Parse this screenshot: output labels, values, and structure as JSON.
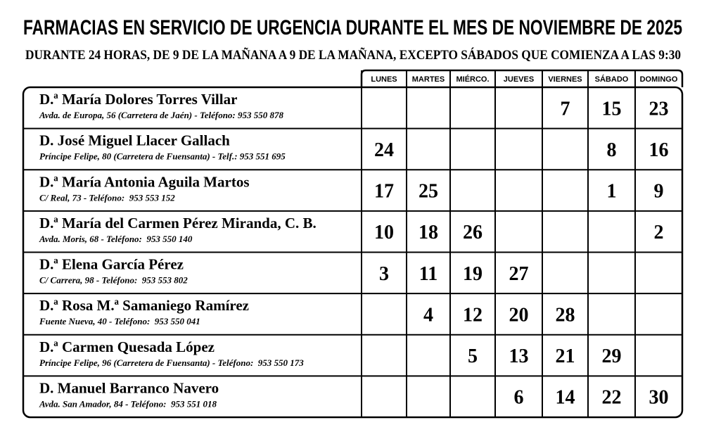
{
  "header": {
    "title": "FARMACIAS EN SERVICIO DE URGENCIA DURANTE EL MES DE NOVIEMBRE DE 2025",
    "subtitle": "DURANTE 24 HORAS, DE 9 DE LA MAÑANA A 9 DE LA MAÑANA, EXCEPTO SÁBADOS QUE COMIENZA A LAS 9:30"
  },
  "table": {
    "columns": [
      "LUNES",
      "MARTES",
      "MIÉRCO.",
      "JUEVES",
      "VIERNES",
      "SÁBADO",
      "DOMINGO"
    ],
    "rows": [
      {
        "name": "D.ª María Dolores Torres Villar",
        "address": "Avda. de Europa, 56 (Carretera de Jaén) - Teléfono: 953 550 878",
        "days": [
          null,
          null,
          null,
          null,
          7,
          15,
          23
        ]
      },
      {
        "name": "D. José Miguel Llacer Gallach",
        "address": "Príncipe Felipe, 80 (Carretera de Fuensanta) - Telf.: 953 551 695",
        "days": [
          24,
          null,
          null,
          null,
          null,
          8,
          16
        ]
      },
      {
        "name": "D.ª María Antonia Aguila Martos",
        "address": "C/ Real, 73 - Teléfono:  953 553 152",
        "days": [
          17,
          25,
          null,
          null,
          null,
          1,
          9
        ]
      },
      {
        "name": "D.ª María del Carmen Pérez Miranda, C. B.",
        "address": "Avda. Moris, 68 - Teléfono:  953 550 140",
        "days": [
          10,
          18,
          26,
          null,
          null,
          null,
          2
        ]
      },
      {
        "name": "D.ª Elena García Pérez",
        "address": "C/ Carrera, 98 - Teléfono:  953 553 802",
        "days": [
          3,
          11,
          19,
          27,
          null,
          null,
          null
        ]
      },
      {
        "name": "D.ª Rosa M.ª Samaniego Ramírez",
        "address": "Fuente Nueva, 40 - Teléfono:  953 550 041",
        "days": [
          null,
          4,
          12,
          20,
          28,
          null,
          null
        ]
      },
      {
        "name": "D.ª Carmen Quesada López",
        "address": "Príncipe Felipe, 96 (Carretera de Fuensanta) - Teléfono:  953 550 173",
        "days": [
          null,
          null,
          5,
          13,
          21,
          29,
          null
        ]
      },
      {
        "name": "D. Manuel Barranco Navero",
        "address": "Avda. San Amador, 84 - Teléfono:  953 551 018",
        "days": [
          null,
          null,
          null,
          6,
          14,
          22,
          30
        ]
      }
    ]
  }
}
